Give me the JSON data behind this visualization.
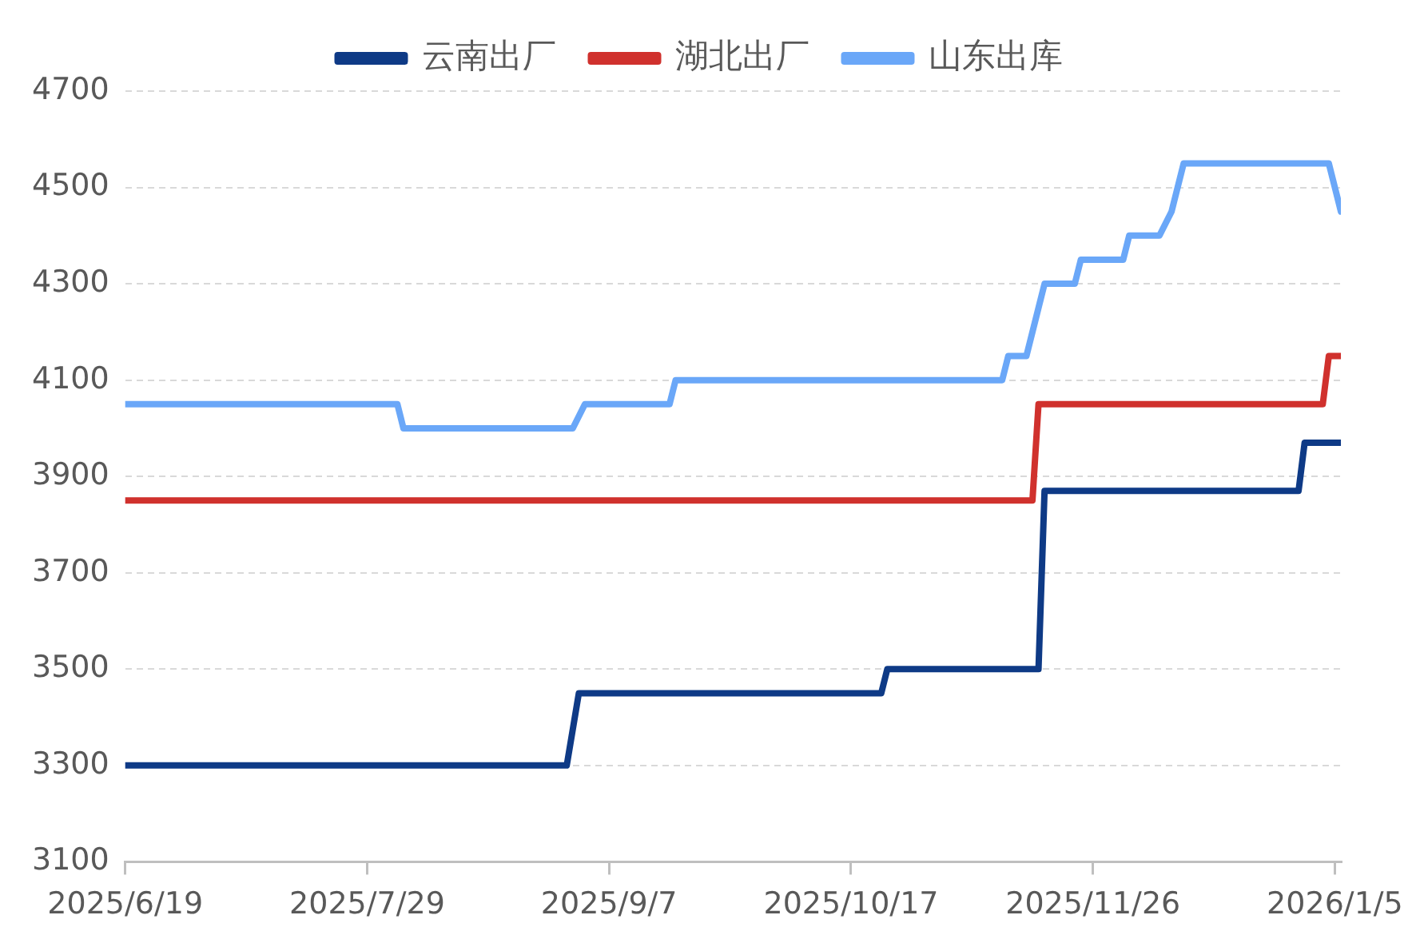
{
  "chart_data": {
    "type": "line",
    "legend": "top",
    "grid": "y",
    "marker": "none",
    "line_style": "solid",
    "xlim": [
      "2025-06-19",
      "2026-01-06"
    ],
    "xticks": [
      {
        "value": "2025-06-19",
        "label": "2025/6/19"
      },
      {
        "value": "2025-07-29",
        "label": "2025/7/29"
      },
      {
        "value": "2025-09-07",
        "label": "2025/9/7"
      },
      {
        "value": "2025-10-17",
        "label": "2025/10/17"
      },
      {
        "value": "2025-11-26",
        "label": "2025/11/26"
      },
      {
        "value": "2026-01-05",
        "label": "2026/1/5"
      }
    ],
    "ylim": [
      3100,
      4700
    ],
    "yticks": [
      3100,
      3300,
      3500,
      3700,
      3900,
      4100,
      4300,
      4500,
      4700
    ],
    "series": [
      {
        "name": "云南出厂",
        "color": "#0e3a86",
        "x": [
          "2025-06-19",
          "2025-08-31",
          "2025-09-02",
          "2025-10-22",
          "2025-10-23",
          "2025-11-17",
          "2025-11-18",
          "2025-12-30",
          "2025-12-31",
          "2026-01-06"
        ],
        "values": [
          3300,
          3300,
          3450,
          3450,
          3500,
          3500,
          3870,
          3870,
          3970,
          3970
        ]
      },
      {
        "name": "湖北出厂",
        "color": "#d0312d",
        "x": [
          "2025-06-19",
          "2025-11-16",
          "2025-11-17",
          "2026-01-03",
          "2026-01-04",
          "2026-01-06"
        ],
        "values": [
          3850,
          3850,
          4050,
          4050,
          4150,
          4150
        ]
      },
      {
        "name": "山东出库",
        "color": "#6aa7f8",
        "x": [
          "2025-06-19",
          "2025-08-03",
          "2025-08-04",
          "2025-09-01",
          "2025-09-03",
          "2025-09-17",
          "2025-09-18",
          "2025-11-11",
          "2025-11-12",
          "2025-11-15",
          "2025-11-17",
          "2025-11-18",
          "2025-11-23",
          "2025-11-24",
          "2025-12-01",
          "2025-12-02",
          "2025-12-07",
          "2025-12-09",
          "2025-12-11",
          "2026-01-04",
          "2026-01-06"
        ],
        "values": [
          4050,
          4050,
          4000,
          4000,
          4050,
          4050,
          4100,
          4100,
          4150,
          4150,
          4250,
          4300,
          4300,
          4350,
          4350,
          4400,
          4400,
          4450,
          4550,
          4550,
          4450
        ]
      }
    ]
  }
}
